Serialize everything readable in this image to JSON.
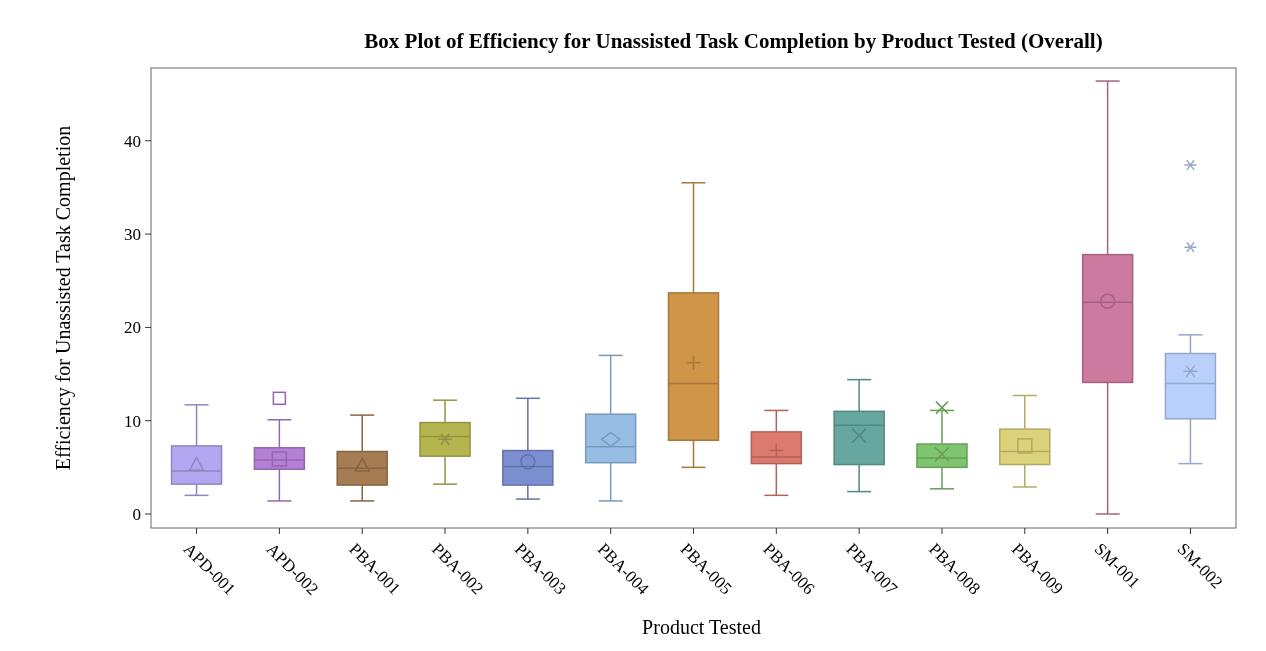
{
  "chart_data": {
    "type": "box",
    "title": "Box Plot of Efficiency for Unassisted Task Completion by Product Tested (Overall)",
    "xlabel": "Product Tested",
    "ylabel": "Efficiency for Unassisted Task Completion",
    "categories": [
      "APD-001",
      "APD-002",
      "PBA-001",
      "PBA-002",
      "PBA-003",
      "PBA-004",
      "PBA-005",
      "PBA-006",
      "PBA-007",
      "PBA-008",
      "PBA-009",
      "SM-001",
      "SM-002"
    ],
    "colors": [
      "#b3a6f0",
      "#b57fd6",
      "#a67c52",
      "#b5b54f",
      "#7b8fd0",
      "#98bde4",
      "#cf9548",
      "#dd7a6e",
      "#66a8a0",
      "#7fc46e",
      "#ddd27c",
      "#cc7a9e",
      "#b8d0fb"
    ],
    "boxes": [
      {
        "low": 2.0,
        "q1": 3.2,
        "median": 4.6,
        "q3": 7.3,
        "high": 11.7,
        "mean": 5.3
      },
      {
        "low": 1.4,
        "q1": 4.8,
        "median": 5.8,
        "q3": 7.1,
        "high": 10.1,
        "mean": 5.9,
        "outliers": [
          12.4
        ]
      },
      {
        "low": 1.4,
        "q1": 3.1,
        "median": 4.9,
        "q3": 6.7,
        "high": 10.6,
        "mean": 5.2
      },
      {
        "low": 3.2,
        "q1": 6.2,
        "median": 8.3,
        "q3": 9.8,
        "high": 12.2,
        "mean": 8.0
      },
      {
        "low": 1.6,
        "q1": 3.1,
        "median": 5.1,
        "q3": 6.8,
        "high": 12.4,
        "mean": 5.6
      },
      {
        "low": 1.4,
        "q1": 5.5,
        "median": 7.2,
        "q3": 10.7,
        "high": 17.0,
        "mean": 8.0
      },
      {
        "low": 5.0,
        "q1": 7.9,
        "median": 14.0,
        "q3": 23.7,
        "high": 35.5,
        "mean": 16.2
      },
      {
        "low": 2.0,
        "q1": 5.4,
        "median": 6.1,
        "q3": 8.8,
        "high": 11.1,
        "mean": 6.8
      },
      {
        "low": 2.4,
        "q1": 5.3,
        "median": 9.5,
        "q3": 11.0,
        "high": 14.4,
        "mean": 8.4
      },
      {
        "low": 2.7,
        "q1": 5.0,
        "median": 6.0,
        "q3": 7.5,
        "high": 11.1,
        "mean": 6.4,
        "outliers": [
          11.4
        ]
      },
      {
        "low": 2.9,
        "q1": 5.3,
        "median": 6.7,
        "q3": 9.1,
        "high": 12.7,
        "mean": 7.3
      },
      {
        "low": 0.0,
        "q1": 14.1,
        "median": 22.7,
        "q3": 27.8,
        "high": 46.4,
        "mean": 22.8
      },
      {
        "low": 5.4,
        "q1": 10.2,
        "median": 14.0,
        "q3": 17.2,
        "high": 19.2,
        "mean": 15.3,
        "outliers": [
          28.6,
          37.4
        ]
      }
    ],
    "ylim": [
      -1.5,
      47.8
    ],
    "yticks": [
      0,
      10,
      20,
      30,
      40
    ],
    "grid": false
  }
}
